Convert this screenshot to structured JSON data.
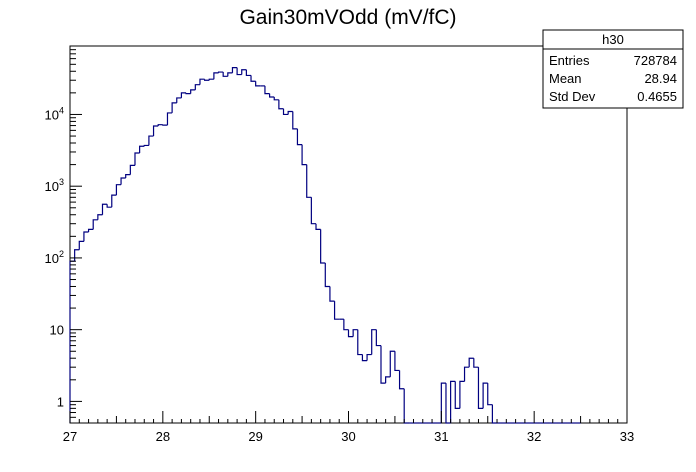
{
  "chart_data": {
    "type": "histogram",
    "title": "Gain30mVOdd (mV/fC)",
    "xlabel": "",
    "ylabel": "",
    "xlim": [
      27,
      33
    ],
    "ylim": [
      0.5,
      90000
    ],
    "log_y": true,
    "grid": false,
    "legend": "none",
    "line_color": "#000080",
    "x_ticks": [
      "27",
      "28",
      "29",
      "30",
      "31",
      "32",
      "33"
    ],
    "y_ticks": [
      {
        "value": 1,
        "base": "1",
        "exp": ""
      },
      {
        "value": 10,
        "base": "10",
        "exp": ""
      },
      {
        "value": 100,
        "base": "10",
        "exp": "2"
      },
      {
        "value": 1000,
        "base": "10",
        "exp": "3"
      },
      {
        "value": 10000,
        "base": "10",
        "exp": "4"
      }
    ],
    "bin_width": 0.05,
    "bin_start": 27.0,
    "values": [
      90,
      130,
      170,
      230,
      250,
      340,
      400,
      560,
      510,
      750,
      1050,
      1300,
      1450,
      1950,
      2900,
      3600,
      3700,
      5000,
      6900,
      7200,
      7100,
      10500,
      14500,
      17000,
      20000,
      19500,
      22000,
      26000,
      31000,
      30000,
      31000,
      38000,
      39000,
      34000,
      38000,
      45000,
      36000,
      42000,
      35000,
      29000,
      25000,
      25000,
      19500,
      17500,
      16000,
      12000,
      10000,
      11000,
      6300,
      3800,
      2000,
      700,
      300,
      250,
      85,
      40,
      25,
      14,
      14,
      10,
      8,
      10,
      4.5,
      3.7,
      4.5,
      10,
      6,
      1.8,
      2.2,
      5,
      2.7,
      1.5,
      0,
      0.3,
      0,
      0,
      0,
      0,
      0,
      0,
      1.8,
      0,
      1.9,
      0.8,
      1.9,
      3.0,
      4.0,
      3.0,
      0.8,
      1.8,
      0.9,
      0,
      0,
      0,
      0,
      0,
      0,
      0,
      0,
      0,
      0,
      0,
      0,
      0,
      0,
      0,
      0,
      0,
      0,
      0
    ]
  },
  "stats_box": {
    "name": "h30",
    "rows": [
      {
        "label": "Entries",
        "value": "728784"
      },
      {
        "label": "Mean",
        "value": "28.94"
      },
      {
        "label": "Std Dev",
        "value": "0.4655"
      }
    ]
  }
}
